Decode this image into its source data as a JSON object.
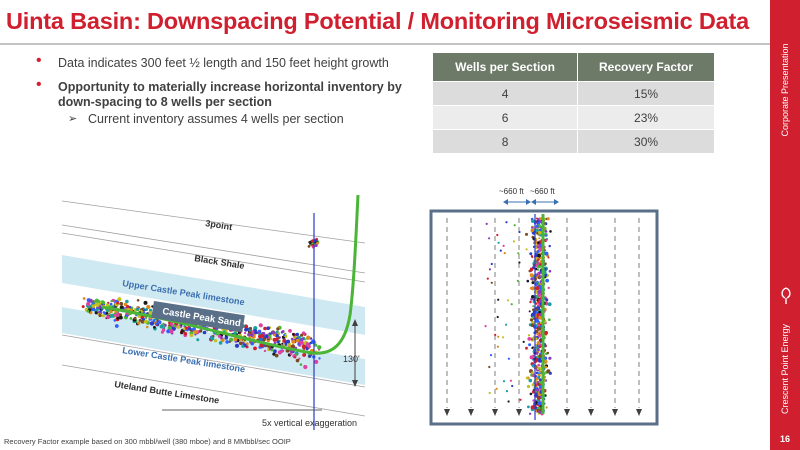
{
  "title": "Uinta Basin: Downspacing Potential / Monitoring Microseismic Data",
  "sidebar": {
    "top_label": "Corporate Presentation",
    "bottom_label": "Crescent Point Energy",
    "page_number": "16",
    "accent_color": "#d01f2e"
  },
  "bullets": {
    "item1": "Data indicates 300 feet ½ length and 150 feet height growth",
    "item2": "Opportunity to materially increase horizontal inventory by down-spacing to 8 wells per section",
    "item2_sub": "Current inventory assumes 4 wells per section"
  },
  "table": {
    "headers": [
      "Wells per Section",
      "Recovery Factor"
    ],
    "rows": [
      [
        "4",
        "15%"
      ],
      [
        "6",
        "23%"
      ],
      [
        "8",
        "30%"
      ]
    ],
    "header_color": "#6e7a68"
  },
  "cross_section": {
    "labels": {
      "threepoint": "3point",
      "black_shale": "Black Shale",
      "upper_castle_peak": "Upper Castle Peak limestone",
      "castle_peak_sand": "Castle Peak Sand",
      "lower_castle_peak": "Lower Castle Peak limestone",
      "uteland_butte": "Uteland Butte Limestone",
      "height": "130'",
      "exaggeration": "5x vertical exaggeration"
    }
  },
  "map_view": {
    "spacing_left": "~660 ft",
    "spacing_right": "~660 ft"
  },
  "footnote": "Recovery Factor example based on 300 mbbl/well (380 mboe) and 8 MMbbl/sec OOIP"
}
